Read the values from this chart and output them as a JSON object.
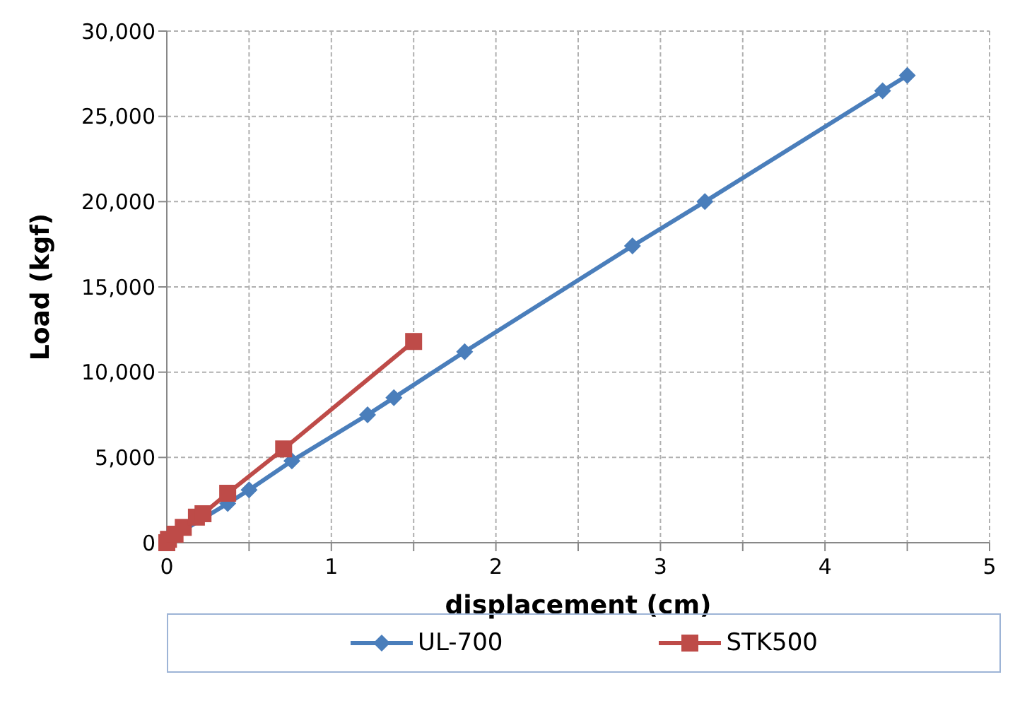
{
  "chart_data": {
    "type": "line",
    "xlabel": "displacement (cm)",
    "ylabel": "Load (kgf)",
    "xlim": [
      0,
      5
    ],
    "xticks": [
      0,
      {
        "value": 0.5,
        "label": null
      },
      1,
      {
        "value": 1.5,
        "label": null
      },
      2,
      {
        "value": 2.5,
        "label": null
      },
      3,
      {
        "value": 3.5,
        "label": null
      },
      4,
      {
        "value": 4.5,
        "label": null
      },
      5
    ],
    "ylim": [
      0,
      30000
    ],
    "yticks": [
      {
        "value": 0,
        "label": "0"
      },
      {
        "value": 5000,
        "label": "5,000"
      },
      {
        "value": 10000,
        "label": "10,000"
      },
      {
        "value": 15000,
        "label": "15,000"
      },
      {
        "value": 20000,
        "label": "20,000"
      },
      {
        "value": 25000,
        "label": "25,000"
      },
      {
        "value": 30000,
        "label": "30,000"
      }
    ],
    "grid": true,
    "legend": "bottom",
    "series": [
      {
        "name": "UL-700",
        "color": "#4a7ebb",
        "marker": "diamond",
        "x": [
          0,
          0.03,
          0.1,
          0.2,
          0.37,
          0.5,
          0.76,
          1.22,
          1.38,
          1.81,
          2.83,
          3.27,
          4.35,
          4.5
        ],
        "values": [
          0,
          300,
          null,
          null,
          2300,
          3100,
          4800,
          7500,
          8500,
          11200,
          17400,
          20000,
          26500,
          27400
        ]
      },
      {
        "name": "STK500",
        "color": "#be4b48",
        "marker": "square",
        "x": [
          0,
          0.01,
          0.05,
          0.1,
          0.18,
          0.22,
          0.37,
          0.71,
          1.5
        ],
        "values": [
          0,
          200,
          500,
          900,
          1500,
          1700,
          2900,
          5500,
          11800
        ]
      }
    ]
  }
}
